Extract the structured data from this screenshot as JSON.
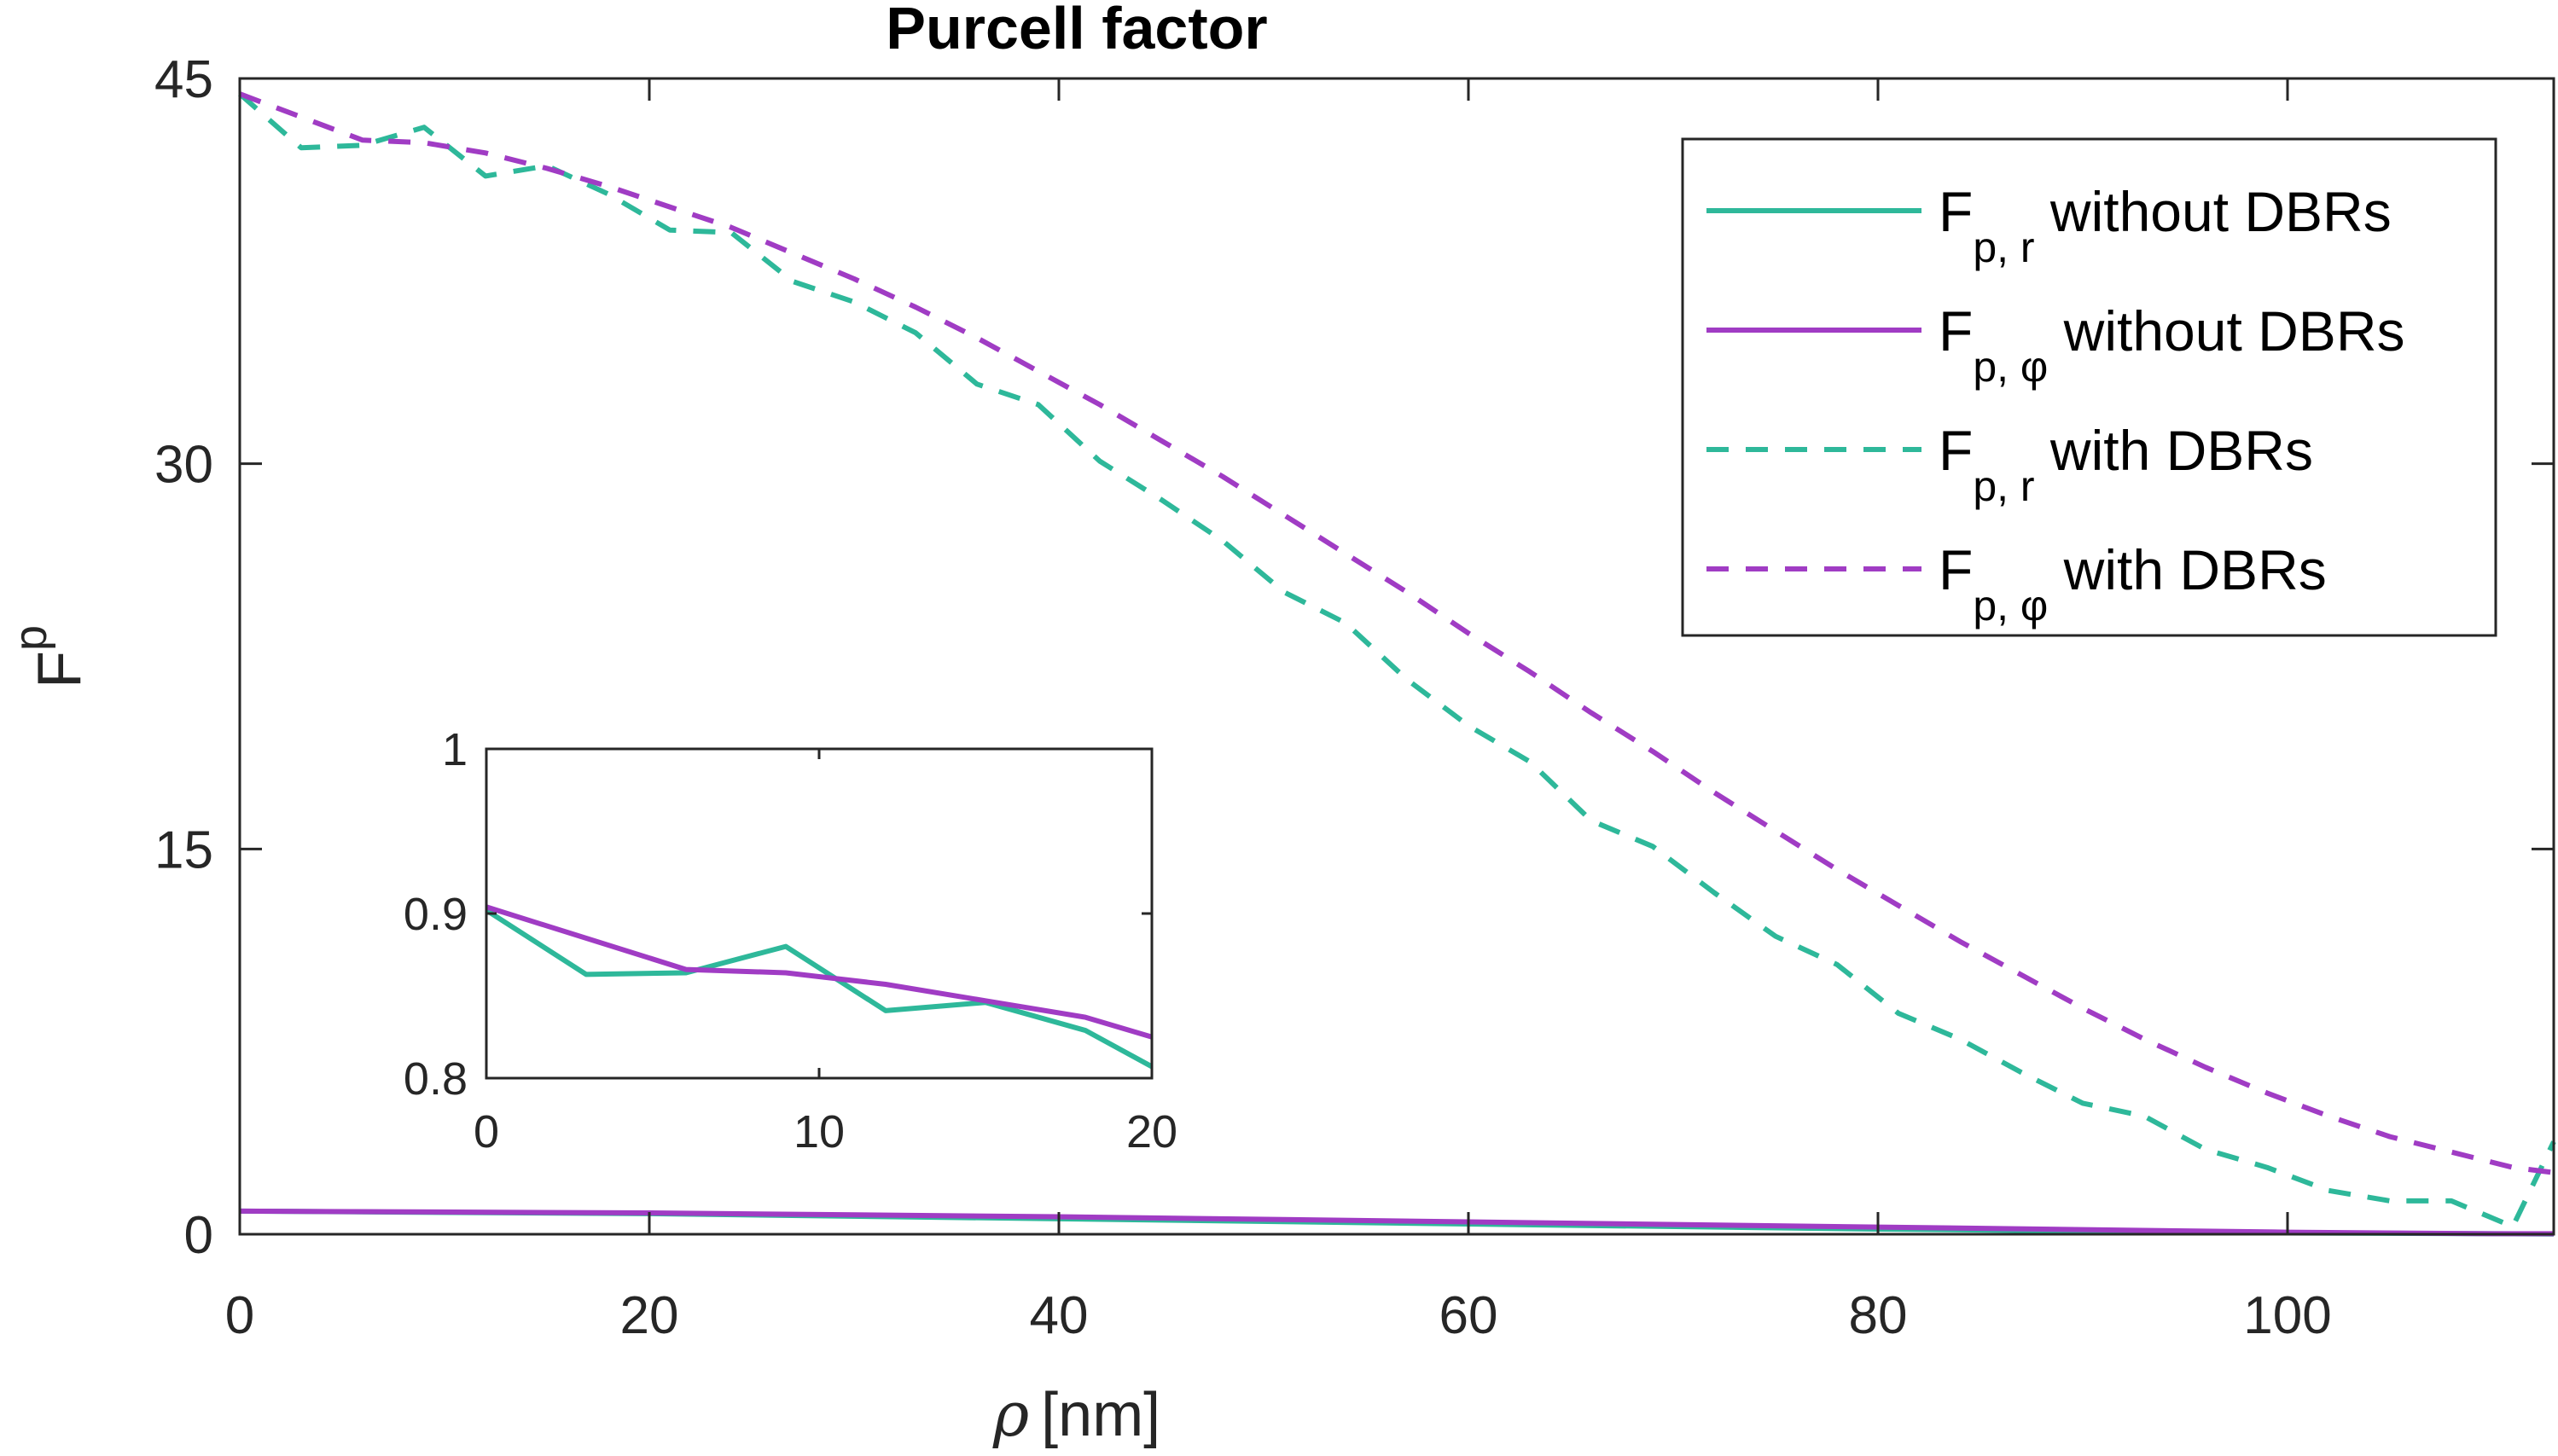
{
  "chart_data": [
    {
      "type": "line",
      "title": "Purcell factor",
      "xlabel_symbol": "ρ",
      "xlabel_unit": "[nm]",
      "ylabel_main": "F",
      "ylabel_sub": "p",
      "xlim": [
        0,
        113
      ],
      "ylim": [
        0,
        45
      ],
      "xticks": [
        0,
        20,
        40,
        60,
        80,
        100
      ],
      "yticks": [
        0,
        15,
        30,
        45
      ],
      "legend_position": "top-right",
      "series": [
        {
          "name": "Fp,r without DBRs",
          "legend_main": "F",
          "legend_sub": "p, r",
          "legend_rest": " without DBRs",
          "color": "#2EB89A",
          "style": "solid",
          "x": [
            0,
            20,
            40,
            60,
            80,
            100,
            110,
            113
          ],
          "y": [
            0.9,
            0.8,
            0.6,
            0.4,
            0.2,
            0.05,
            0.02,
            0.01
          ]
        },
        {
          "name": "Fp,φ without DBRs",
          "legend_main": "F",
          "legend_sub": "p, φ",
          "legend_rest": " without DBRs",
          "color": "#A03CC4",
          "style": "solid",
          "x": [
            0,
            20,
            40,
            60,
            80,
            100,
            110,
            113
          ],
          "y": [
            0.9,
            0.83,
            0.68,
            0.48,
            0.28,
            0.08,
            0.02,
            0.02
          ]
        },
        {
          "name": "Fp,r with DBRs",
          "legend_main": "F",
          "legend_sub": "p, r",
          "legend_rest": " with DBRs",
          "color": "#2EB89A",
          "style": "dashed",
          "x": [
            0,
            3,
            6,
            9,
            12,
            15,
            18,
            21,
            24,
            27,
            30,
            33,
            36,
            39,
            42,
            45,
            48,
            51,
            54,
            57,
            60,
            63,
            66,
            69,
            72,
            75,
            78,
            81,
            84,
            87,
            90,
            93,
            96,
            99,
            102,
            105,
            108,
            111,
            113
          ],
          "y": [
            44.4,
            42.3,
            42.4,
            43.1,
            41.2,
            41.6,
            40.5,
            39.1,
            39.0,
            37.1,
            36.3,
            35.1,
            33.1,
            32.3,
            30.1,
            28.6,
            27.0,
            25.0,
            23.8,
            21.6,
            19.8,
            18.4,
            16.1,
            15.1,
            13.3,
            11.6,
            10.5,
            8.6,
            7.6,
            6.3,
            5.1,
            4.6,
            3.3,
            2.6,
            1.7,
            1.3,
            1.3,
            0.3,
            3.6
          ]
        },
        {
          "name": "Fp,φ with DBRs",
          "legend_main": "F",
          "legend_sub": "p, φ",
          "legend_rest": " with DBRs",
          "color": "#A03CC4",
          "style": "dashed",
          "x": [
            0,
            3,
            6,
            9,
            12,
            15,
            18,
            21,
            24,
            27,
            30,
            33,
            36,
            39,
            42,
            45,
            48,
            51,
            54,
            57,
            60,
            63,
            66,
            69,
            72,
            75,
            78,
            81,
            84,
            87,
            90,
            93,
            96,
            99,
            102,
            105,
            108,
            111,
            113
          ],
          "y": [
            44.4,
            43.5,
            42.6,
            42.5,
            42.1,
            41.5,
            40.8,
            40.0,
            39.2,
            38.2,
            37.2,
            36.1,
            34.9,
            33.6,
            32.3,
            30.9,
            29.5,
            28.0,
            26.5,
            25.0,
            23.4,
            21.9,
            20.3,
            18.8,
            17.2,
            15.7,
            14.2,
            12.8,
            11.4,
            10.1,
            8.8,
            7.6,
            6.5,
            5.5,
            4.6,
            3.8,
            3.2,
            2.6,
            2.4
          ]
        }
      ]
    },
    {
      "type": "line",
      "title": "",
      "xlim": [
        0,
        20
      ],
      "ylim": [
        0.8,
        1
      ],
      "xticks": [
        0,
        10,
        20
      ],
      "yticks": [
        0.8,
        0.9,
        1
      ],
      "ytick_labels": [
        "0.8",
        "0.9",
        "1"
      ],
      "position": "inset lower-left",
      "series": [
        {
          "name": "Fp,r without DBRs",
          "color": "#2EB89A",
          "style": "solid",
          "x": [
            0,
            3,
            6,
            9,
            12,
            15,
            18,
            20
          ],
          "y": [
            0.902,
            0.863,
            0.864,
            0.88,
            0.841,
            0.846,
            0.829,
            0.807
          ]
        },
        {
          "name": "Fp,φ without DBRs",
          "color": "#A03CC4",
          "style": "solid",
          "x": [
            0,
            6,
            9,
            12,
            15,
            18,
            20
          ],
          "y": [
            0.904,
            0.866,
            0.864,
            0.857,
            0.847,
            0.837,
            0.825
          ]
        }
      ]
    }
  ]
}
